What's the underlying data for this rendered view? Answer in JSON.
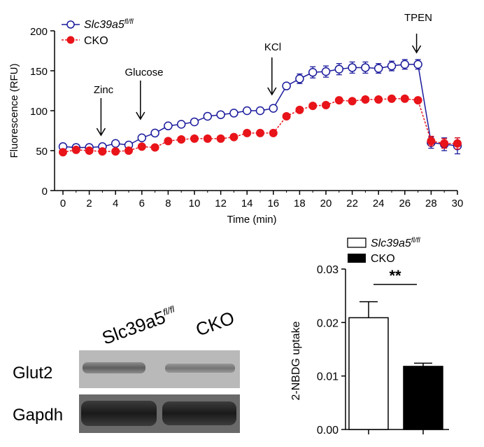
{
  "chart_data": [
    {
      "type": "line",
      "ylabel": "Fluorescence (RFU)",
      "xlabel": "Time (min)",
      "xlim": [
        0,
        30
      ],
      "ylim": [
        0,
        200
      ],
      "xticks": [
        0,
        2,
        4,
        6,
        8,
        10,
        12,
        14,
        16,
        18,
        20,
        22,
        24,
        26,
        28,
        30
      ],
      "yticks": [
        0,
        50,
        100,
        150,
        200
      ],
      "legend_position": "top-left",
      "series": [
        {
          "name": "Slc39a5",
          "name_superscript": "fl/fl",
          "color": "#1a1a9c",
          "marker": "open-circle",
          "x": [
            0,
            1,
            2,
            3,
            4,
            5,
            6,
            7,
            8,
            9,
            10,
            11,
            12,
            13,
            14,
            15,
            16,
            17,
            18,
            19,
            20,
            21,
            22,
            23,
            24,
            25,
            26,
            27,
            28,
            29,
            30
          ],
          "y": [
            55,
            54,
            54,
            55,
            59,
            57,
            66,
            72,
            81,
            83,
            86,
            93,
            95,
            97,
            100,
            100,
            103,
            131,
            140,
            148,
            149,
            152,
            154,
            154,
            153,
            156,
            158,
            158,
            60,
            58,
            56
          ],
          "err": [
            0,
            0,
            0,
            0,
            0,
            0,
            0,
            0,
            0,
            0,
            0,
            0,
            0,
            0,
            0,
            0,
            0,
            0,
            6,
            7,
            7,
            7,
            7,
            7,
            6,
            6,
            6,
            6,
            7,
            8,
            10
          ]
        },
        {
          "name": "CKO",
          "color": "#e8141a",
          "marker": "filled-circle",
          "x": [
            0,
            1,
            2,
            3,
            4,
            5,
            6,
            7,
            8,
            9,
            10,
            11,
            12,
            13,
            14,
            15,
            16,
            17,
            18,
            19,
            20,
            21,
            22,
            23,
            24,
            25,
            26,
            27,
            28,
            29,
            30
          ],
          "y": [
            48,
            51,
            50,
            49,
            49,
            50,
            55,
            54,
            62,
            64,
            65,
            65,
            65,
            67,
            72,
            72,
            72,
            93,
            101,
            106,
            107,
            113,
            112,
            114,
            114,
            115,
            115,
            113,
            62,
            59,
            59
          ],
          "err": [
            0,
            0,
            0,
            0,
            0,
            0,
            0,
            0,
            0,
            0,
            0,
            0,
            0,
            0,
            0,
            0,
            0,
            0,
            0,
            0,
            0,
            0,
            0,
            0,
            0,
            0,
            0,
            0,
            6,
            6,
            7
          ]
        }
      ],
      "annotations": [
        {
          "text": "Zinc",
          "x": 3
        },
        {
          "text": "Glucose",
          "x": 6
        },
        {
          "text": "KCl",
          "x": 16
        },
        {
          "text": "TPEN",
          "x": 27
        }
      ]
    },
    {
      "type": "bar",
      "ylabel": "2-NBDG uptake",
      "ylim": [
        0,
        0.03
      ],
      "yticks": [
        "0.00",
        "0.01",
        "0.02",
        "0.03"
      ],
      "legend_position": "top",
      "significance": "**",
      "series": [
        {
          "name": "Slc39a5",
          "name_superscript": "fl/fl",
          "fill": "#ffffff",
          "value": 0.0209,
          "err": 0.003
        },
        {
          "name": "CKO",
          "fill": "#000000",
          "value": 0.0118,
          "err": 0.0006
        }
      ]
    }
  ],
  "blot": {
    "lane_labels": [
      {
        "text": "Slc39a5",
        "superscript": "fl/fl"
      },
      {
        "text": "CKO"
      }
    ],
    "row_labels": [
      "Glut2",
      "Gapdh"
    ]
  }
}
